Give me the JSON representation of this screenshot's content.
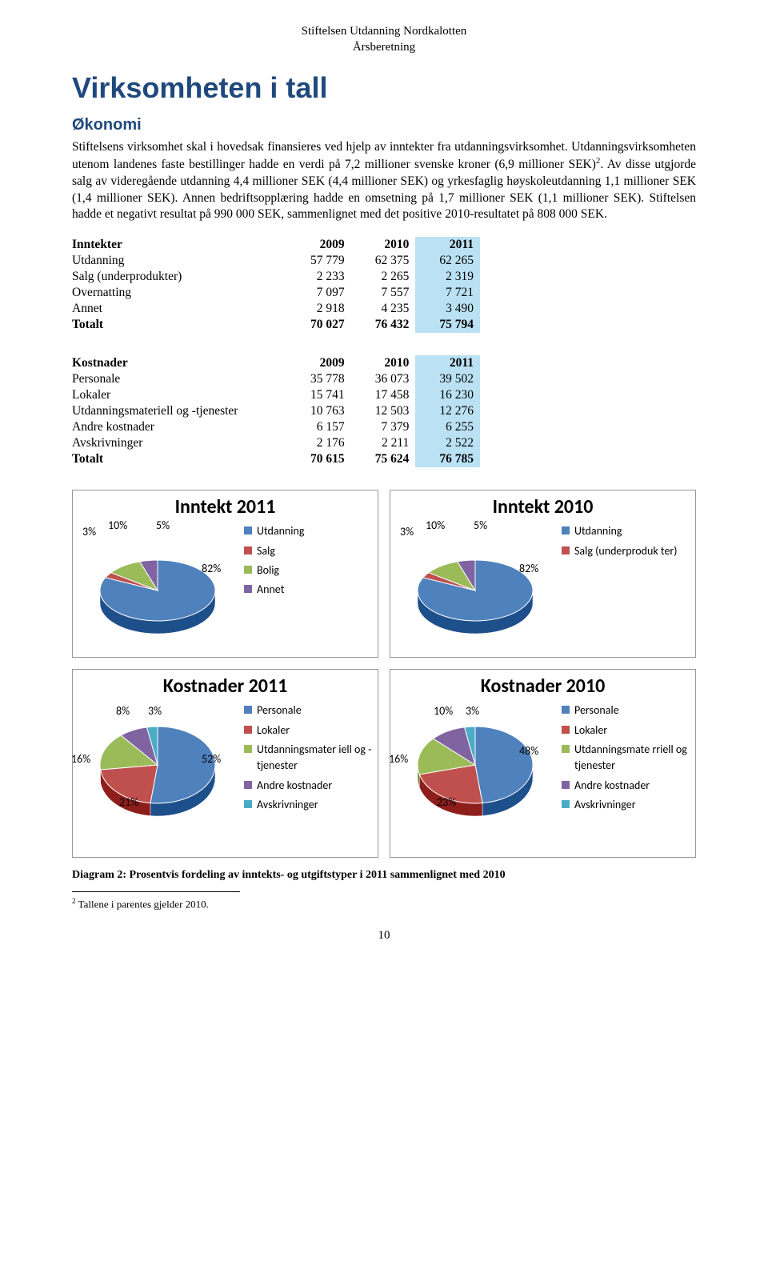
{
  "doc_header": {
    "line1": "Stiftelsen Utdanning Nordkalotten",
    "line2": "Årsberetning"
  },
  "title": "Virksomheten i tall",
  "subtitle": "Økonomi",
  "paragraph": "Stiftelsens virksomhet skal i hovedsak finansieres ved hjelp av inntekter fra utdanningsvirksomhet. Utdanningsvirksomheten utenom landenes faste bestillinger hadde en verdi på 7,2 millioner svenske kroner (6,9 millioner SEK)",
  "paragraph_sup": "2",
  "paragraph_cont": ". Av disse utgjorde salg av videregående utdanning 4,4 millioner SEK (4,4 millioner SEK) og yrkesfaglig høyskoleutdanning 1,1 millioner SEK (1,4 millioner SEK). Annen bedriftsopplæring hadde en omsetning på 1,7 millioner SEK (1,1 millioner SEK). Stiftelsen hadde et negativt resultat på 990 000 SEK, sammenlignet med det positive 2010-resultatet på 808 000 SEK.",
  "inntekter_table": {
    "header": [
      "Inntekter",
      "2009",
      "2010",
      "2011"
    ],
    "rows": [
      [
        "Utdanning",
        "57 779",
        "62 375",
        "62 265"
      ],
      [
        "Salg (underprodukter)",
        "2 233",
        "2 265",
        "2 319"
      ],
      [
        "Overnatting",
        "7 097",
        "7 557",
        "7 721"
      ],
      [
        "Annet",
        "2 918",
        "4 235",
        "3 490"
      ],
      [
        "Totalt",
        "70 027",
        "76 432",
        "75 794"
      ]
    ]
  },
  "kostnader_table": {
    "header": [
      "Kostnader",
      "2009",
      "2010",
      "2011"
    ],
    "rows": [
      [
        "Personale",
        "35 778",
        "36 073",
        "39 502"
      ],
      [
        "Lokaler",
        "15 741",
        "17 458",
        "16 230"
      ],
      [
        "Utdanningsmateriell og -tjenester",
        "10 763",
        "12 503",
        "12 276"
      ],
      [
        "Andre kostnader",
        "6 157",
        "7 379",
        "6 255"
      ],
      [
        "Avskrivninger",
        "2 176",
        "2 211",
        "2 522"
      ],
      [
        "Totalt",
        "70 615",
        "75 624",
        "76 785"
      ]
    ]
  },
  "palette": {
    "blue": "#4f81bd",
    "red": "#c0504d",
    "green": "#9bbb59",
    "purple": "#8064a2",
    "teal": "#4bacc6"
  },
  "charts": {
    "inntekt2011": {
      "title": "Inntekt 2011",
      "slices": [
        {
          "label": "Utdanning",
          "pct": 82,
          "color": "#4f81bd"
        },
        {
          "label": "Salg",
          "pct": 3,
          "color": "#c0504d"
        },
        {
          "label": "Bolig",
          "pct": 10,
          "color": "#9bbb59"
        },
        {
          "label": "Annet",
          "pct": 5,
          "color": "#8064a2"
        }
      ],
      "callouts": [
        "3%",
        "10%",
        "5%",
        "82%"
      ]
    },
    "inntekt2010": {
      "title": "Inntekt 2010",
      "slices": [
        {
          "label": "Utdanning",
          "pct": 82,
          "color": "#4f81bd"
        },
        {
          "label": "Salg (underproduk ter)",
          "pct": 3,
          "color": "#c0504d"
        },
        {
          "label": "",
          "pct": 10,
          "color": "#9bbb59"
        },
        {
          "label": "",
          "pct": 5,
          "color": "#8064a2"
        }
      ],
      "callouts": [
        "3%",
        "10%",
        "5%",
        "82%"
      ]
    },
    "kostnader2011": {
      "title": "Kostnader 2011",
      "slices": [
        {
          "label": "Personale",
          "pct": 52,
          "color": "#4f81bd"
        },
        {
          "label": "Lokaler",
          "pct": 21,
          "color": "#c0504d"
        },
        {
          "label": "Utdanningsmater iell og -tjenester",
          "pct": 16,
          "color": "#9bbb59"
        },
        {
          "label": "Andre kostnader",
          "pct": 8,
          "color": "#8064a2"
        },
        {
          "label": "Avskrivninger",
          "pct": 3,
          "color": "#4bacc6"
        }
      ],
      "callouts": [
        "8%",
        "3%",
        "16%",
        "21%",
        "52%"
      ]
    },
    "kostnader2010": {
      "title": "Kostnader 2010",
      "slices": [
        {
          "label": "Personale",
          "pct": 48,
          "color": "#4f81bd"
        },
        {
          "label": "Lokaler",
          "pct": 23,
          "color": "#c0504d"
        },
        {
          "label": "Utdanningsmate rriell og tjenester",
          "pct": 16,
          "color": "#9bbb59"
        },
        {
          "label": "Andre kostnader",
          "pct": 10,
          "color": "#8064a2"
        },
        {
          "label": "Avskrivninger",
          "pct": 3,
          "color": "#4bacc6"
        }
      ],
      "callouts": [
        "10%",
        "3%",
        "16%",
        "23%",
        "48%"
      ]
    }
  },
  "caption": "Diagram 2: Prosentvis fordeling av inntekts- og utgiftstyper i 2011 sammenlignet med 2010",
  "footnote_marker": "2",
  "footnote_text": " Tallene i parentes gjelder 2010.",
  "page_number": "10"
}
